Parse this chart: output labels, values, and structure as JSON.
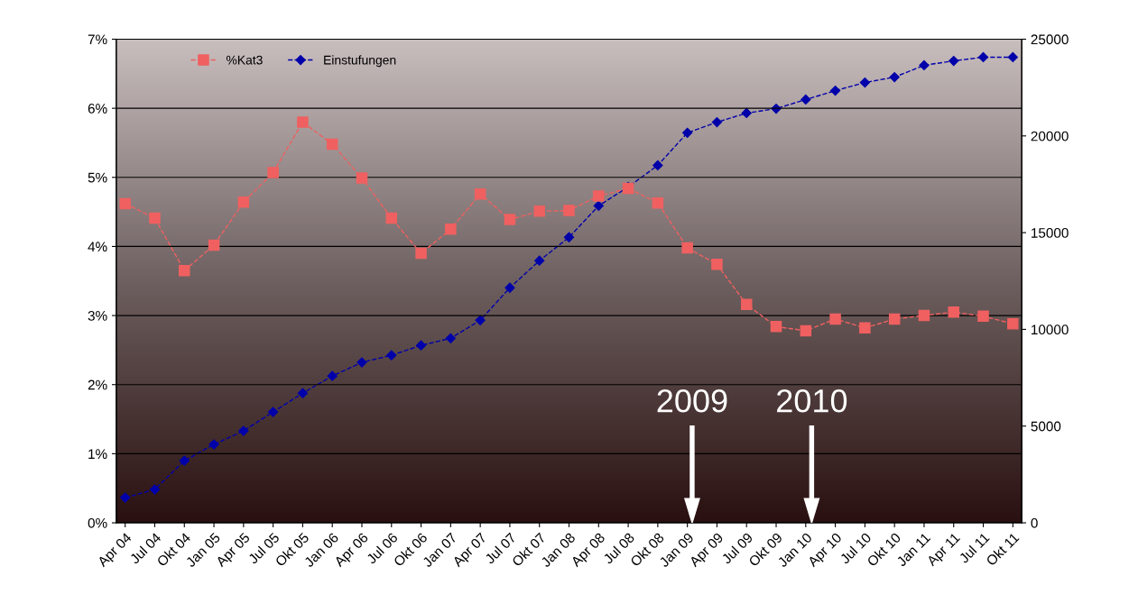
{
  "chart_data": {
    "type": "line",
    "categories": [
      "Apr 04",
      "Jul 04",
      "Okt 04",
      "Jan 05",
      "Apr 05",
      "Jul 05",
      "Okt 05",
      "Jan 06",
      "Apr 06",
      "Jul 06",
      "Okt 06",
      "Jan 07",
      "Apr 07",
      "Jul 07",
      "Okt 07",
      "Jan 08",
      "Apr 08",
      "Jul 08",
      "Okt 08",
      "Jan 09",
      "Apr 09",
      "Jul 09",
      "Okt 09",
      "Jan 10",
      "Apr 10",
      "Jul 10",
      "Okt 10",
      "Jan 11",
      "Apr 11",
      "Jul 11",
      "Okt 11"
    ],
    "series": [
      {
        "name": "%Kat3",
        "color": "#f06060",
        "marker": "square",
        "values": [
          0.0462,
          0.0441,
          0.0365,
          0.0402,
          0.0464,
          0.0507,
          0.058,
          0.0548,
          0.0499,
          0.0441,
          0.039,
          0.0425,
          0.0476,
          0.0439,
          0.0451,
          0.0452,
          0.0473,
          0.0484,
          0.0463,
          0.0398,
          0.0374,
          0.0316,
          0.0284,
          0.0278,
          0.0295,
          0.0282,
          0.0295,
          0.03,
          0.0305,
          0.0299,
          0.0288
        ]
      },
      {
        "name": "Einstufungen",
        "color": "#0000aa",
        "marker": "diamond",
        "axis": "y2",
        "values": [
          1300,
          1720,
          3210,
          4050,
          4750,
          5730,
          6700,
          7590,
          8290,
          8660,
          9170,
          9540,
          10470,
          12150,
          13550,
          14760,
          16390,
          17360,
          18480,
          20160,
          20710,
          21180,
          21410,
          21880,
          22340,
          22760,
          23040,
          23650,
          23880,
          24070,
          24070
        ]
      }
    ],
    "ylim": [
      0,
      0.07
    ],
    "yticks": [
      {
        "value": 0,
        "label": "0%"
      },
      {
        "value": 0.01,
        "label": "1%"
      },
      {
        "value": 0.02,
        "label": "2%"
      },
      {
        "value": 0.03,
        "label": "3%"
      },
      {
        "value": 0.04,
        "label": "4%"
      },
      {
        "value": 0.05,
        "label": "5%"
      },
      {
        "value": 0.06,
        "label": "6%"
      },
      {
        "value": 0.07,
        "label": "7%"
      }
    ],
    "y2lim": [
      0,
      25000
    ],
    "y2ticks": [
      0,
      5000,
      10000,
      15000,
      20000,
      25000
    ],
    "line_style": "dashed",
    "grid": "y",
    "legend": "top left",
    "annotations": [
      "2009",
      "2010"
    ]
  }
}
